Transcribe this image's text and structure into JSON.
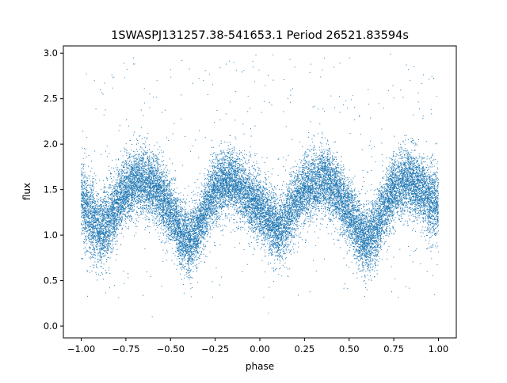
{
  "chart_data": {
    "type": "scatter",
    "title": "1SWASPJ131257.38-541653.1 Period 26521.83594s",
    "xlabel": "phase",
    "ylabel": "flux",
    "xlim": [
      -1.1,
      1.1
    ],
    "ylim": [
      -0.13,
      3.08
    ],
    "xticks": [
      {
        "value": -1.0,
        "label": "−1.00"
      },
      {
        "value": -0.75,
        "label": "−0.75"
      },
      {
        "value": -0.5,
        "label": "−0.50"
      },
      {
        "value": -0.25,
        "label": "−0.25"
      },
      {
        "value": 0.0,
        "label": "0.00"
      },
      {
        "value": 0.25,
        "label": "0.25"
      },
      {
        "value": 0.5,
        "label": "0.50"
      },
      {
        "value": 0.75,
        "label": "0.75"
      },
      {
        "value": 1.0,
        "label": "1.00"
      }
    ],
    "yticks": [
      {
        "value": 0.0,
        "label": "0.0"
      },
      {
        "value": 0.5,
        "label": "0.5"
      },
      {
        "value": 1.0,
        "label": "1.0"
      },
      {
        "value": 1.5,
        "label": "1.5"
      },
      {
        "value": 2.0,
        "label": "2.0"
      },
      {
        "value": 2.5,
        "label": "2.5"
      },
      {
        "value": 3.0,
        "label": "3.0"
      }
    ],
    "grid": false,
    "legend": "none",
    "marker_color": "#1f77b4",
    "envelope": {
      "phase": [
        -1.0,
        -0.95,
        -0.9,
        -0.85,
        -0.8,
        -0.75,
        -0.7,
        -0.65,
        -0.6,
        -0.55,
        -0.5,
        -0.45,
        -0.4,
        -0.35,
        -0.3,
        -0.25,
        -0.2,
        -0.15,
        -0.1,
        -0.05,
        0.0,
        0.05,
        0.1,
        0.15,
        0.2,
        0.25,
        0.3,
        0.35,
        0.4,
        0.45,
        0.5,
        0.55,
        0.6,
        0.65,
        0.7,
        0.75,
        0.8,
        0.85,
        0.9,
        0.95,
        1.0
      ],
      "median_flux": [
        1.35,
        1.2,
        1.05,
        1.1,
        1.35,
        1.5,
        1.58,
        1.6,
        1.55,
        1.42,
        1.25,
        1.05,
        0.92,
        1.05,
        1.3,
        1.5,
        1.58,
        1.6,
        1.5,
        1.4,
        1.3,
        1.2,
        1.05,
        1.15,
        1.35,
        1.5,
        1.58,
        1.6,
        1.55,
        1.42,
        1.25,
        1.05,
        0.92,
        1.05,
        1.3,
        1.5,
        1.58,
        1.6,
        1.5,
        1.4,
        1.35
      ],
      "scatter": [
        0.2,
        0.22,
        0.2,
        0.2,
        0.18,
        0.18,
        0.18,
        0.18,
        0.18,
        0.18,
        0.18,
        0.18,
        0.18,
        0.18,
        0.18,
        0.18,
        0.18,
        0.18,
        0.18,
        0.18,
        0.18,
        0.18,
        0.18,
        0.18,
        0.18,
        0.18,
        0.18,
        0.18,
        0.18,
        0.18,
        0.18,
        0.18,
        0.18,
        0.18,
        0.18,
        0.18,
        0.18,
        0.18,
        0.18,
        0.2,
        0.22
      ]
    },
    "point_count": 22000,
    "outlier_fraction": 0.02
  }
}
